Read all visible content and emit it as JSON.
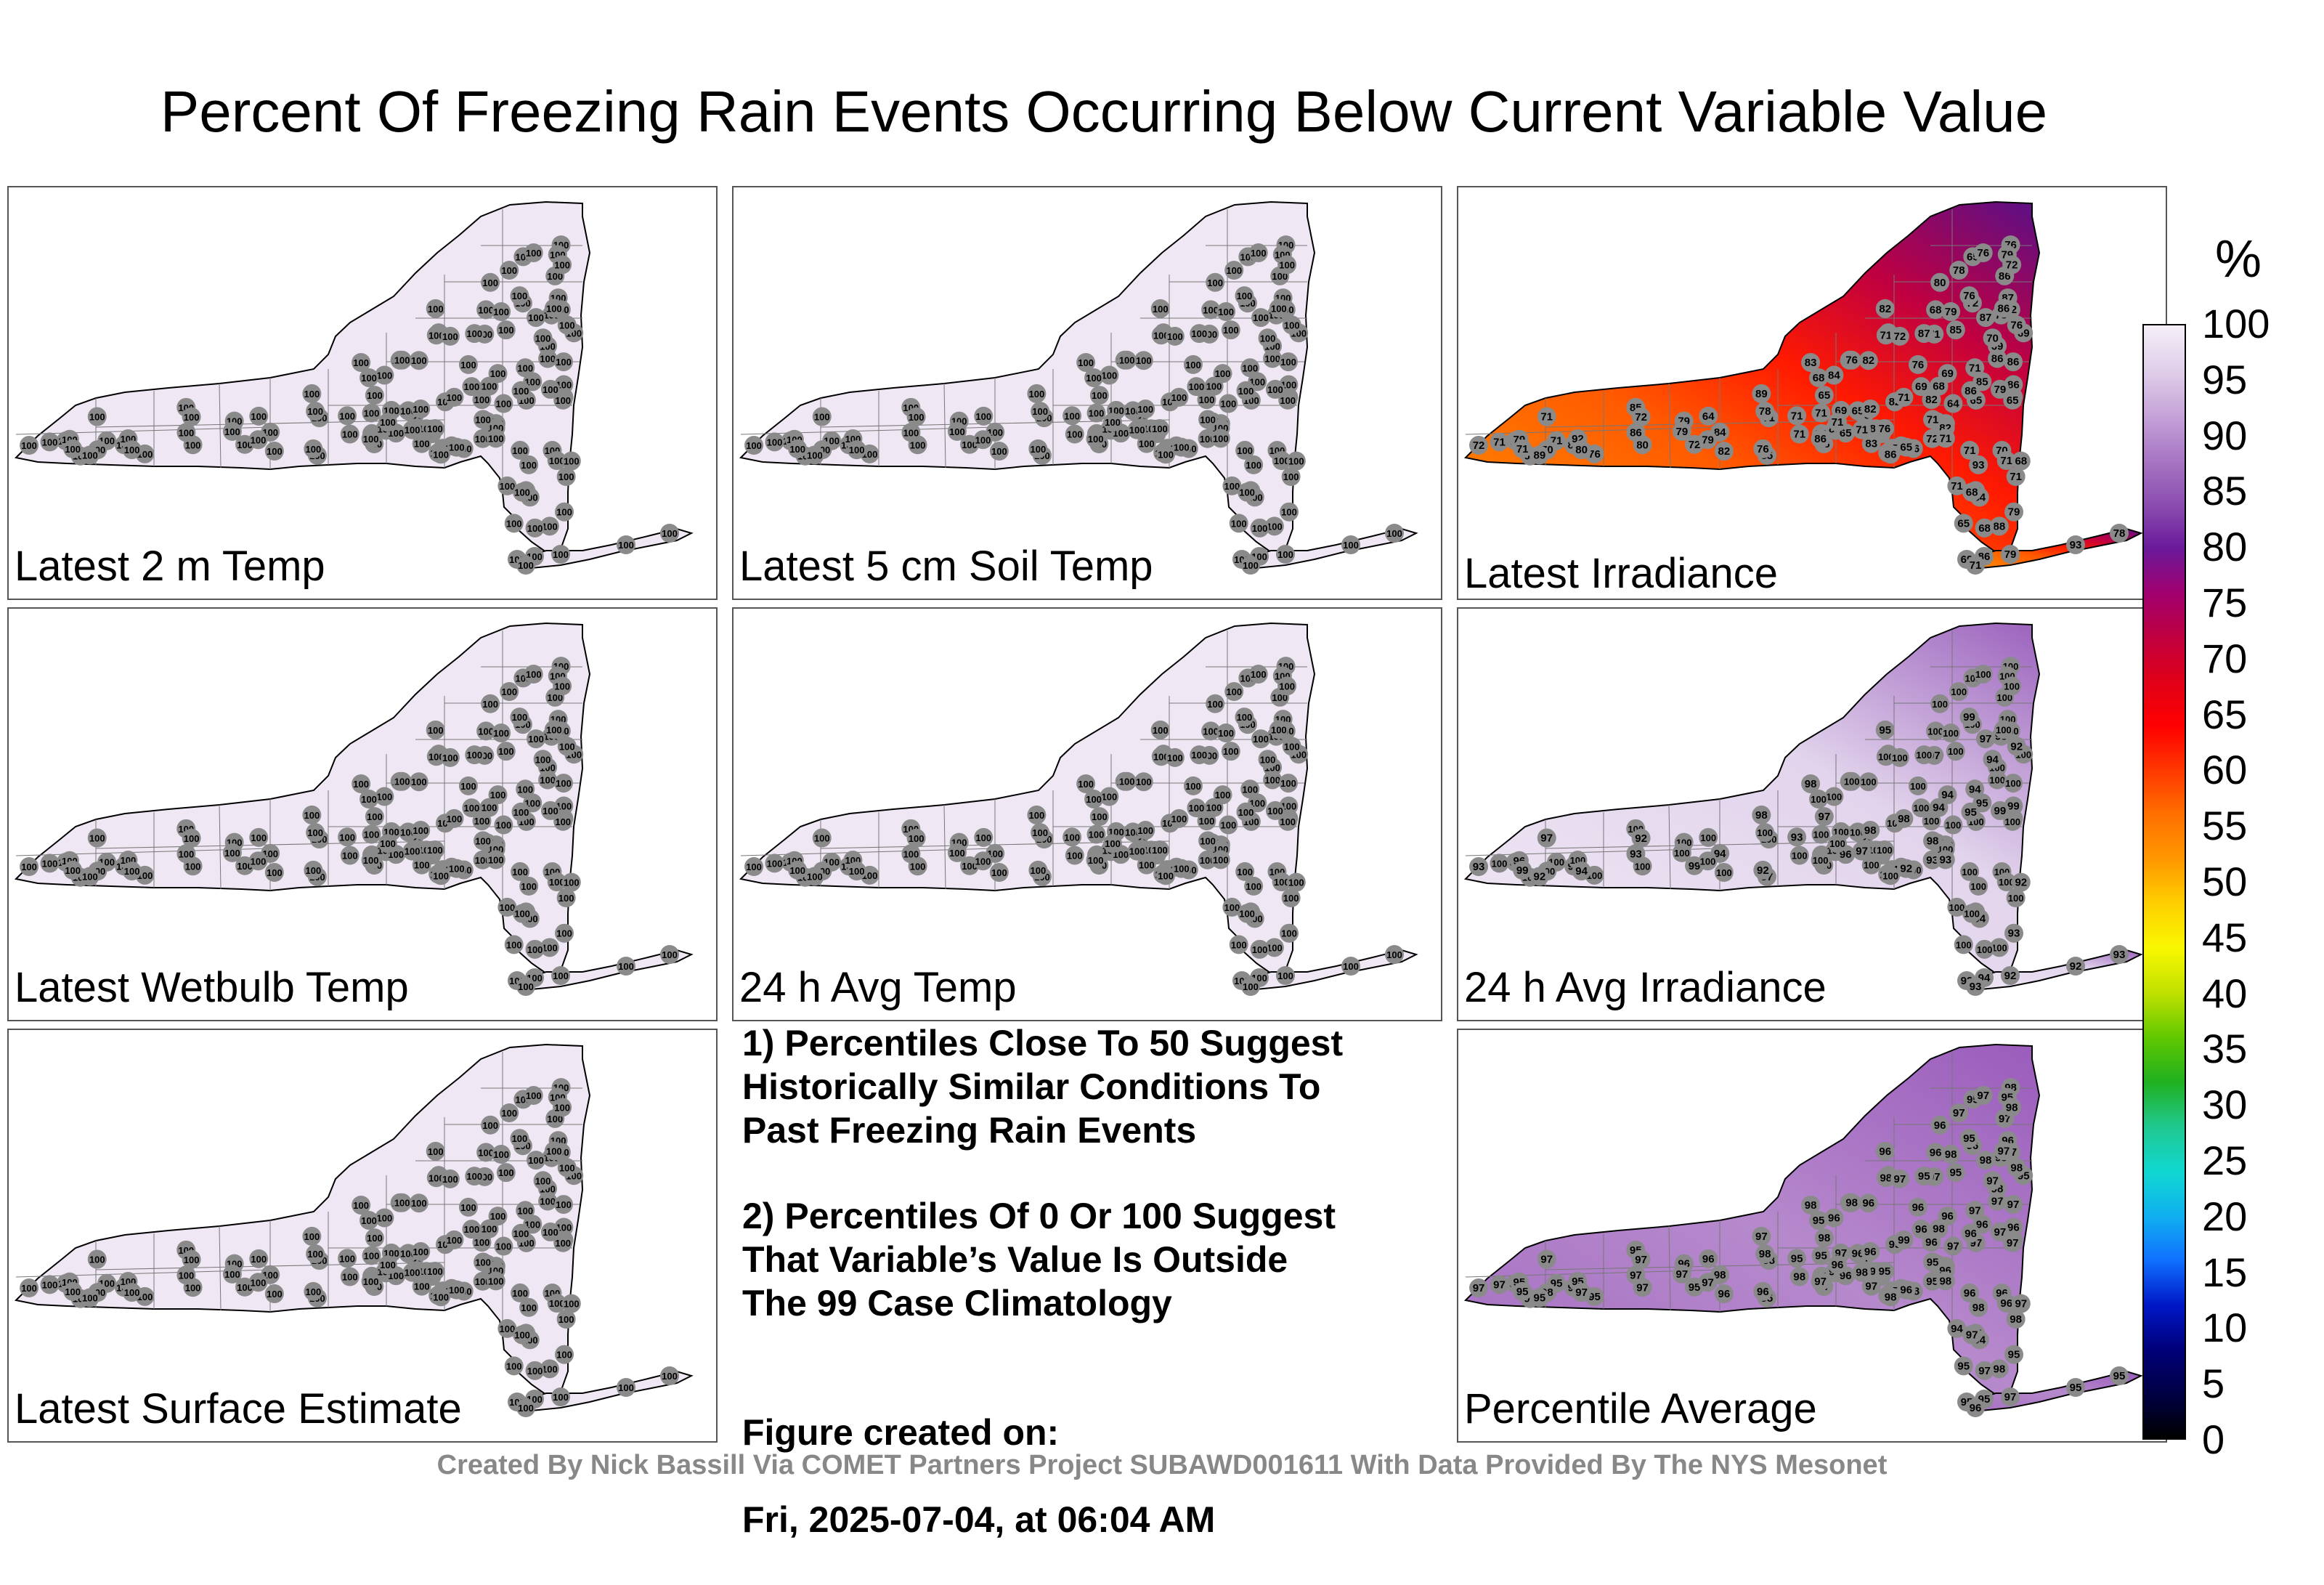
{
  "title": "Percent Of Freezing Rain Events Occurring Below Current Variable Value",
  "panels": [
    {
      "label": "Latest 2 m Temp",
      "mode": "uniform",
      "value": 100,
      "fill": "#efe8f4"
    },
    {
      "label": "Latest 5 cm Soil Temp",
      "mode": "uniform",
      "value": 100,
      "fill": "#efe8f4"
    },
    {
      "label": "Latest Irradiance",
      "mode": "gradient",
      "values": [
        65,
        65,
        65,
        68,
        69,
        71,
        72,
        76,
        71,
        65,
        68,
        78,
        80,
        76,
        71,
        70,
        72,
        69,
        71,
        83,
        76,
        71,
        84,
        85,
        72,
        71,
        76,
        71,
        82,
        68,
        72,
        79,
        71,
        86,
        79,
        64,
        71,
        65,
        76,
        68,
        82,
        71,
        86,
        79,
        82,
        86,
        87,
        70,
        86,
        79,
        80,
        89,
        71,
        69,
        86,
        71,
        79,
        93,
        78,
        82,
        87,
        89,
        85,
        88,
        92,
        79,
        86,
        80,
        76,
        71,
        82,
        85,
        84,
        82,
        86
      ]
    },
    {
      "label": "Latest Wetbulb Temp",
      "mode": "uniform",
      "value": 100,
      "fill": "#efe8f4"
    },
    {
      "label": "24 h Avg Temp",
      "mode": "uniform",
      "value": 100,
      "fill": "#efe8f4"
    },
    {
      "label": "24 h Avg Irradiance",
      "mode": "light",
      "values": [
        100,
        100,
        100,
        100,
        100,
        100,
        100,
        100,
        100,
        100,
        100,
        98,
        100,
        100,
        100,
        100,
        99,
        100,
        99,
        98,
        100,
        97,
        94,
        95,
        93,
        94,
        92,
        97,
        92,
        94,
        93,
        92,
        92,
        93,
        96,
        100,
        100,
        100,
        100,
        100,
        100,
        100,
        100,
        100,
        100,
        100,
        100,
        100,
        100,
        100
      ]
    },
    {
      "label": "Percentile Average",
      "mode": "avg",
      "values": [
        95,
        95,
        96,
        97,
        95,
        95,
        96,
        95,
        94,
        96,
        97,
        95,
        96,
        98,
        97,
        96,
        95,
        97,
        96,
        98,
        96,
        97,
        98,
        96,
        95,
        97,
        98,
        97,
        96,
        98,
        97,
        96,
        98,
        96,
        95,
        97,
        98,
        97,
        96,
        96,
        95,
        98,
        97,
        96,
        97,
        98,
        96,
        99,
        97,
        98,
        97,
        96,
        95,
        98,
        97,
        96,
        97,
        98,
        97,
        96,
        95,
        97,
        95,
        98
      ]
    }
  ],
  "notes": {
    "note1": "1) Percentiles Close To 50 Suggest\nHistorically Similar Conditions To\nPast Freezing Rain Events",
    "note2": "2) Percentiles Of 0 Or 100 Suggest\nThat Variable’s Value Is Outside\nThe 99 Case Climatology",
    "created_label": "Figure created on:",
    "created_value": "Fri, 2025-07-04, at 06:04 AM"
  },
  "colorbar": {
    "unit": "%",
    "ticks": [
      "100",
      "95",
      "90",
      "85",
      "80",
      "75",
      "70",
      "65",
      "60",
      "55",
      "50",
      "45",
      "40",
      "35",
      "30",
      "25",
      "20",
      "15",
      "10",
      "5",
      "0"
    ],
    "colors": [
      "#000000",
      "#000044",
      "#00007a",
      "#0018c8",
      "#1070ff",
      "#10b0f0",
      "#10d8d0",
      "#20c890",
      "#20b020",
      "#60c800",
      "#c0e000",
      "#f8f800",
      "#ffd000",
      "#ff9800",
      "#ff7000",
      "#ff3800",
      "#ff0000",
      "#e00018",
      "#c00040",
      "#a00070",
      "#6a1a9a",
      "#8c4fb0",
      "#a877c4",
      "#c6a4d8",
      "#e0cfea",
      "#f4eff8"
    ]
  },
  "footer": "Created By Nick Bassill Via COMET Partners Project SUBAWD001611 With Data Provided By The NYS Mesonet"
}
